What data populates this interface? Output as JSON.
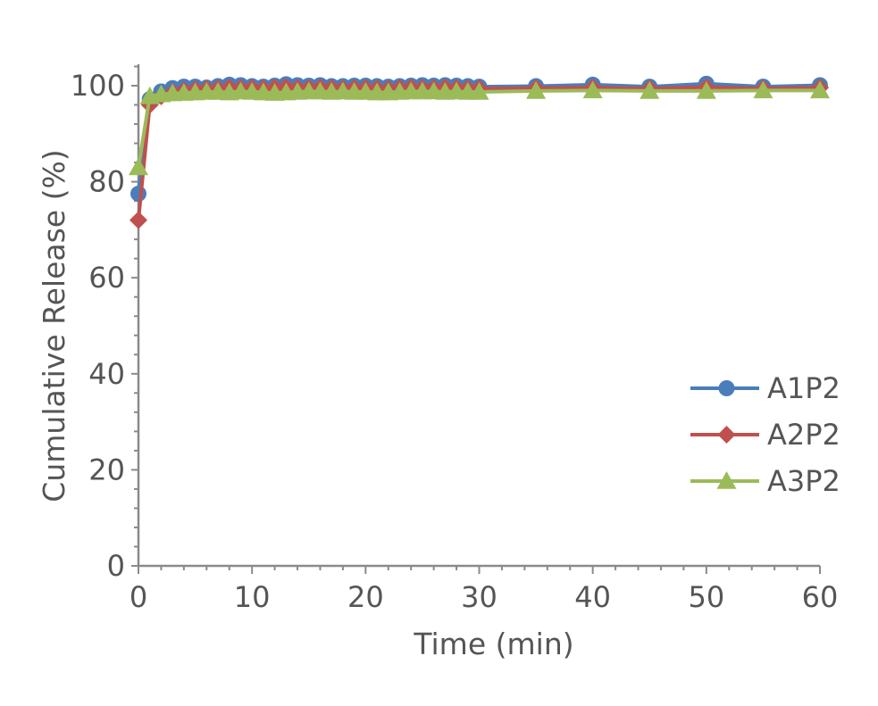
{
  "chart_data": {
    "type": "line",
    "title": "",
    "xlabel": "Time (min)",
    "ylabel": "Cumulative Release (%)",
    "xlim": [
      0,
      60
    ],
    "ylim": [
      0,
      100
    ],
    "xticks": [
      0,
      10,
      20,
      30,
      40,
      50,
      60
    ],
    "yticks": [
      0,
      20,
      40,
      60,
      80,
      100
    ],
    "x_tick_labels": [
      "0",
      "10",
      "20",
      "30",
      "40",
      "50",
      "60"
    ],
    "y_tick_labels": [
      "0",
      "20",
      "40",
      "60",
      "80",
      "100"
    ],
    "grid": false,
    "legend_position": "right",
    "series": [
      {
        "name": "A1P2",
        "color": "#4a7ebb",
        "marker": "circle",
        "x": [
          0,
          1,
          2,
          3,
          4,
          5,
          6,
          7,
          8,
          9,
          10,
          11,
          12,
          13,
          14,
          15,
          16,
          17,
          18,
          19,
          20,
          21,
          22,
          23,
          24,
          25,
          26,
          27,
          28,
          29,
          30,
          35,
          40,
          45,
          50,
          55,
          60
        ],
        "values": [
          77.5,
          97.2,
          98.8,
          99.5,
          99.8,
          99.8,
          99.6,
          99.9,
          100.2,
          100.1,
          99.9,
          99.8,
          100.0,
          100.3,
          100.1,
          100.0,
          100.1,
          99.9,
          99.9,
          100.0,
          100.0,
          99.9,
          99.8,
          99.9,
          100.0,
          100.1,
          100.0,
          100.1,
          100.0,
          99.9,
          99.8,
          99.9,
          100.2,
          99.8,
          100.4,
          99.8,
          100.1
        ]
      },
      {
        "name": "A2P2",
        "color": "#c0504d",
        "marker": "diamond",
        "x": [
          0,
          1,
          2,
          3,
          4,
          5,
          6,
          7,
          8,
          9,
          10,
          11,
          12,
          13,
          14,
          15,
          16,
          17,
          18,
          19,
          20,
          21,
          22,
          23,
          24,
          25,
          26,
          27,
          28,
          29,
          30,
          35,
          40,
          45,
          50,
          55,
          60
        ],
        "values": [
          72.0,
          96.0,
          97.8,
          98.6,
          99.0,
          99.2,
          99.3,
          99.4,
          99.6,
          99.5,
          99.5,
          99.4,
          99.6,
          99.7,
          99.5,
          99.5,
          99.6,
          99.5,
          99.4,
          99.5,
          99.5,
          99.4,
          99.3,
          99.5,
          99.6,
          99.5,
          99.5,
          99.6,
          99.5,
          99.4,
          99.4,
          99.5,
          99.6,
          99.4,
          99.7,
          99.4,
          99.6
        ]
      },
      {
        "name": "A3P2",
        "color": "#9bbb59",
        "marker": "triangle",
        "x": [
          0,
          1,
          2,
          3,
          4,
          5,
          6,
          7,
          8,
          9,
          10,
          11,
          12,
          13,
          14,
          15,
          16,
          17,
          18,
          19,
          20,
          21,
          22,
          23,
          24,
          25,
          26,
          27,
          28,
          29,
          30,
          35,
          40,
          45,
          50,
          55,
          60
        ],
        "values": [
          83.0,
          97.8,
          98.2,
          98.4,
          98.5,
          98.6,
          98.7,
          98.7,
          98.6,
          98.8,
          98.7,
          98.6,
          98.5,
          98.6,
          98.7,
          98.8,
          98.8,
          98.7,
          98.8,
          98.7,
          98.7,
          98.6,
          98.6,
          98.7,
          98.8,
          98.8,
          98.8,
          98.7,
          98.8,
          98.7,
          98.7,
          98.9,
          99.0,
          98.9,
          98.9,
          99.0,
          99.0
        ]
      }
    ]
  }
}
